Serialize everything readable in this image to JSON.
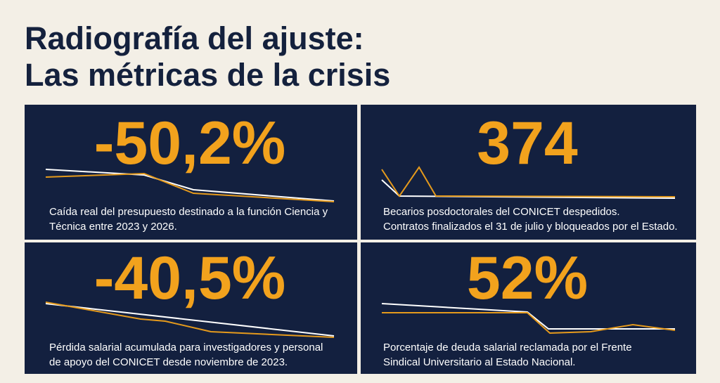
{
  "header": {
    "title_lines": [
      "Radiografía del ajuste:",
      "Las métricas de la crisis"
    ]
  },
  "cards": [
    {
      "figure": "-50,2%",
      "description": [
        "Caída real del presupuesto destinado a la función Ciencia y",
        "Técnica entre 2023 y 2026."
      ]
    },
    {
      "figure": "374",
      "description": [
        "Becarios posdoctorales del CONICET despedidos.",
        "Contratos finalizados el 31 de julio y bloqueados por el Estado."
      ]
    },
    {
      "figure": "-40,5%",
      "description": [
        "Pérdida salarial acumulada para investigadores y personal",
        "de apoyo del CONICET desde noviembre de 2023."
      ]
    },
    {
      "figure": "52%",
      "description": [
        "Porcentaje de deuda salarial reclamada por el Frente",
        "Sindical Universitario al Estado Nacional."
      ]
    }
  ]
}
